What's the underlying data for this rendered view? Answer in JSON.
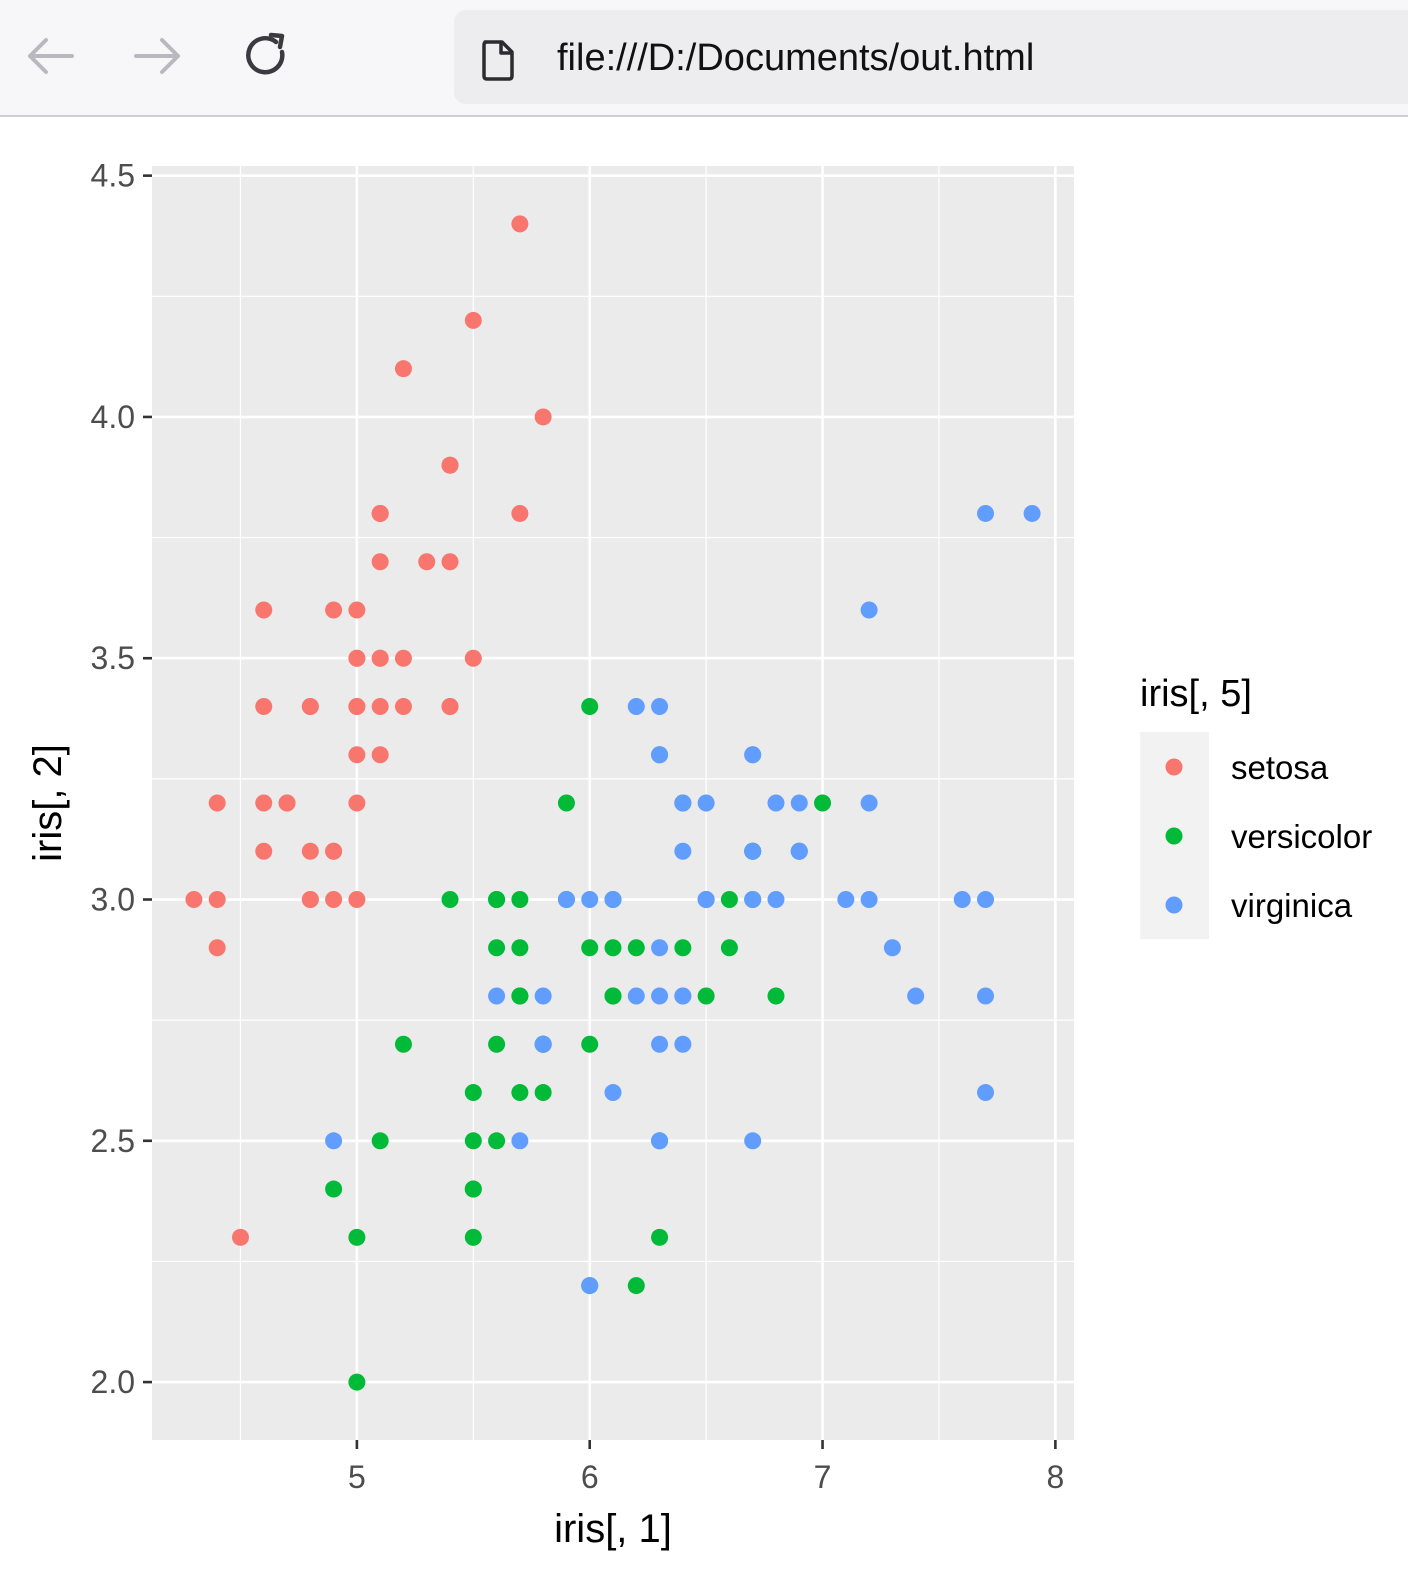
{
  "browser": {
    "url": "file:///D:/Documents/out.html",
    "back_icon": "arrow-left-icon",
    "forward_icon": "arrow-right-icon",
    "reload_icon": "reload-icon",
    "page_icon": "document-icon"
  },
  "chart_data": {
    "type": "scatter",
    "xlabel": "iris[, 1]",
    "ylabel": "iris[, 2]",
    "xlim": [
      4.12,
      8.08
    ],
    "ylim": [
      1.88,
      4.52
    ],
    "xticks": [
      5,
      6,
      7,
      8
    ],
    "xtick_labels": [
      "5",
      "6",
      "7",
      "8"
    ],
    "yticks": [
      2.0,
      2.5,
      3.0,
      3.5,
      4.0,
      4.5
    ],
    "ytick_labels": [
      "2.0",
      "2.5",
      "3.0",
      "3.5",
      "4.0",
      "4.5"
    ],
    "grid": true,
    "legend": {
      "title": "iris[, 5]",
      "position": "right"
    },
    "series": [
      {
        "name": "setosa",
        "color": "#F8766D",
        "points": [
          [
            5.1,
            3.5
          ],
          [
            4.9,
            3.0
          ],
          [
            4.7,
            3.2
          ],
          [
            4.6,
            3.1
          ],
          [
            5.0,
            3.6
          ],
          [
            5.4,
            3.9
          ],
          [
            4.6,
            3.4
          ],
          [
            5.0,
            3.4
          ],
          [
            4.4,
            2.9
          ],
          [
            4.9,
            3.1
          ],
          [
            5.4,
            3.7
          ],
          [
            4.8,
            3.4
          ],
          [
            4.8,
            3.0
          ],
          [
            4.3,
            3.0
          ],
          [
            5.8,
            4.0
          ],
          [
            5.7,
            4.4
          ],
          [
            5.4,
            3.9
          ],
          [
            5.1,
            3.5
          ],
          [
            5.7,
            3.8
          ],
          [
            5.1,
            3.8
          ],
          [
            5.4,
            3.4
          ],
          [
            5.1,
            3.7
          ],
          [
            4.6,
            3.6
          ],
          [
            5.1,
            3.3
          ],
          [
            4.8,
            3.4
          ],
          [
            5.0,
            3.0
          ],
          [
            5.0,
            3.4
          ],
          [
            5.2,
            3.5
          ],
          [
            5.2,
            3.4
          ],
          [
            4.7,
            3.2
          ],
          [
            4.8,
            3.1
          ],
          [
            5.4,
            3.4
          ],
          [
            5.2,
            4.1
          ],
          [
            5.5,
            4.2
          ],
          [
            4.9,
            3.1
          ],
          [
            5.0,
            3.2
          ],
          [
            5.5,
            3.5
          ],
          [
            4.9,
            3.6
          ],
          [
            4.4,
            3.0
          ],
          [
            5.1,
            3.4
          ],
          [
            5.0,
            3.5
          ],
          [
            4.5,
            2.3
          ],
          [
            4.4,
            3.2
          ],
          [
            5.0,
            3.5
          ],
          [
            5.1,
            3.8
          ],
          [
            4.8,
            3.0
          ],
          [
            5.1,
            3.8
          ],
          [
            4.6,
            3.2
          ],
          [
            5.3,
            3.7
          ],
          [
            5.0,
            3.3
          ]
        ]
      },
      {
        "name": "versicolor",
        "color": "#00BA38",
        "points": [
          [
            7.0,
            3.2
          ],
          [
            6.4,
            3.2
          ],
          [
            6.9,
            3.1
          ],
          [
            5.5,
            2.3
          ],
          [
            6.5,
            2.8
          ],
          [
            5.7,
            2.8
          ],
          [
            6.3,
            3.3
          ],
          [
            4.9,
            2.4
          ],
          [
            6.6,
            2.9
          ],
          [
            5.2,
            2.7
          ],
          [
            5.0,
            2.0
          ],
          [
            5.9,
            3.0
          ],
          [
            6.0,
            2.2
          ],
          [
            6.1,
            2.9
          ],
          [
            5.6,
            2.9
          ],
          [
            6.7,
            3.1
          ],
          [
            5.6,
            3.0
          ],
          [
            5.8,
            2.7
          ],
          [
            6.2,
            2.2
          ],
          [
            5.6,
            2.5
          ],
          [
            5.9,
            3.2
          ],
          [
            6.1,
            2.8
          ],
          [
            6.3,
            2.5
          ],
          [
            6.1,
            2.8
          ],
          [
            6.4,
            2.9
          ],
          [
            6.6,
            3.0
          ],
          [
            6.8,
            2.8
          ],
          [
            6.7,
            3.0
          ],
          [
            6.0,
            2.9
          ],
          [
            5.7,
            2.6
          ],
          [
            5.5,
            2.4
          ],
          [
            5.5,
            2.4
          ],
          [
            5.8,
            2.7
          ],
          [
            6.0,
            2.7
          ],
          [
            5.4,
            3.0
          ],
          [
            6.0,
            3.4
          ],
          [
            6.7,
            3.1
          ],
          [
            6.3,
            2.3
          ],
          [
            5.6,
            3.0
          ],
          [
            5.5,
            2.5
          ],
          [
            5.5,
            2.6
          ],
          [
            6.1,
            3.0
          ],
          [
            5.8,
            2.6
          ],
          [
            5.0,
            2.3
          ],
          [
            5.6,
            2.7
          ],
          [
            5.7,
            3.0
          ],
          [
            5.7,
            2.9
          ],
          [
            6.2,
            2.9
          ],
          [
            5.1,
            2.5
          ],
          [
            5.7,
            2.8
          ]
        ]
      },
      {
        "name": "virginica",
        "color": "#619CFF",
        "points": [
          [
            6.3,
            3.3
          ],
          [
            5.8,
            2.7
          ],
          [
            7.1,
            3.0
          ],
          [
            6.3,
            2.9
          ],
          [
            6.5,
            3.0
          ],
          [
            7.6,
            3.0
          ],
          [
            4.9,
            2.5
          ],
          [
            7.3,
            2.9
          ],
          [
            6.7,
            2.5
          ],
          [
            7.2,
            3.6
          ],
          [
            6.5,
            3.2
          ],
          [
            6.4,
            2.7
          ],
          [
            6.8,
            3.0
          ],
          [
            5.7,
            2.5
          ],
          [
            5.8,
            2.8
          ],
          [
            6.4,
            3.2
          ],
          [
            6.5,
            3.0
          ],
          [
            7.7,
            3.8
          ],
          [
            7.7,
            2.6
          ],
          [
            6.0,
            2.2
          ],
          [
            6.9,
            3.2
          ],
          [
            5.6,
            2.8
          ],
          [
            7.7,
            2.8
          ],
          [
            6.3,
            2.7
          ],
          [
            6.7,
            3.3
          ],
          [
            7.2,
            3.2
          ],
          [
            6.2,
            2.8
          ],
          [
            6.1,
            3.0
          ],
          [
            6.4,
            2.8
          ],
          [
            7.2,
            3.0
          ],
          [
            7.4,
            2.8
          ],
          [
            7.9,
            3.8
          ],
          [
            6.4,
            2.8
          ],
          [
            6.3,
            2.8
          ],
          [
            6.1,
            2.6
          ],
          [
            7.7,
            3.0
          ],
          [
            6.3,
            3.4
          ],
          [
            6.4,
            3.1
          ],
          [
            6.0,
            3.0
          ],
          [
            6.9,
            3.1
          ],
          [
            6.7,
            3.1
          ],
          [
            6.9,
            3.1
          ],
          [
            5.8,
            2.7
          ],
          [
            6.8,
            3.2
          ],
          [
            6.7,
            3.3
          ],
          [
            6.7,
            3.0
          ],
          [
            6.3,
            2.5
          ],
          [
            6.5,
            3.0
          ],
          [
            6.2,
            3.4
          ],
          [
            5.9,
            3.0
          ]
        ]
      }
    ]
  }
}
